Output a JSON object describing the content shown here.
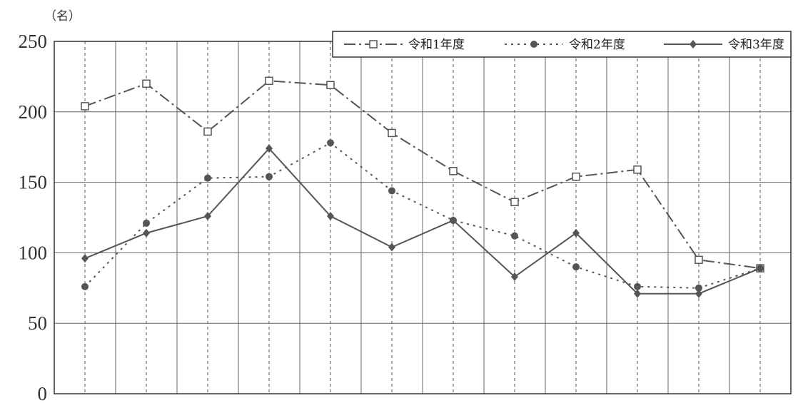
{
  "chart_data": {
    "type": "line",
    "unit_label": "（名）",
    "ylim": [
      0,
      250
    ],
    "y_ticks": [
      0,
      50,
      100,
      150,
      200,
      250
    ],
    "grid": true,
    "legend_placement": "top-right",
    "x": [
      1,
      2,
      3,
      4,
      5,
      6,
      7,
      8,
      9,
      10,
      11,
      12
    ],
    "series": [
      {
        "name": "令和1年度",
        "line_style": "dash-dot",
        "marker": "open-square",
        "color": "#555555",
        "values": [
          204,
          220,
          186,
          222,
          219,
          185,
          158,
          136,
          154,
          159,
          95,
          89
        ]
      },
      {
        "name": "令和2年度",
        "line_style": "dotted",
        "marker": "filled-circle",
        "color": "#555555",
        "values": [
          76,
          121,
          153,
          154,
          178,
          144,
          123,
          112,
          90,
          76,
          75,
          89
        ]
      },
      {
        "name": "令和3年度",
        "line_style": "solid",
        "marker": "filled-diamond",
        "color": "#555555",
        "values": [
          96,
          114,
          126,
          174,
          126,
          104,
          123,
          83,
          114,
          71,
          71,
          89
        ]
      }
    ]
  }
}
